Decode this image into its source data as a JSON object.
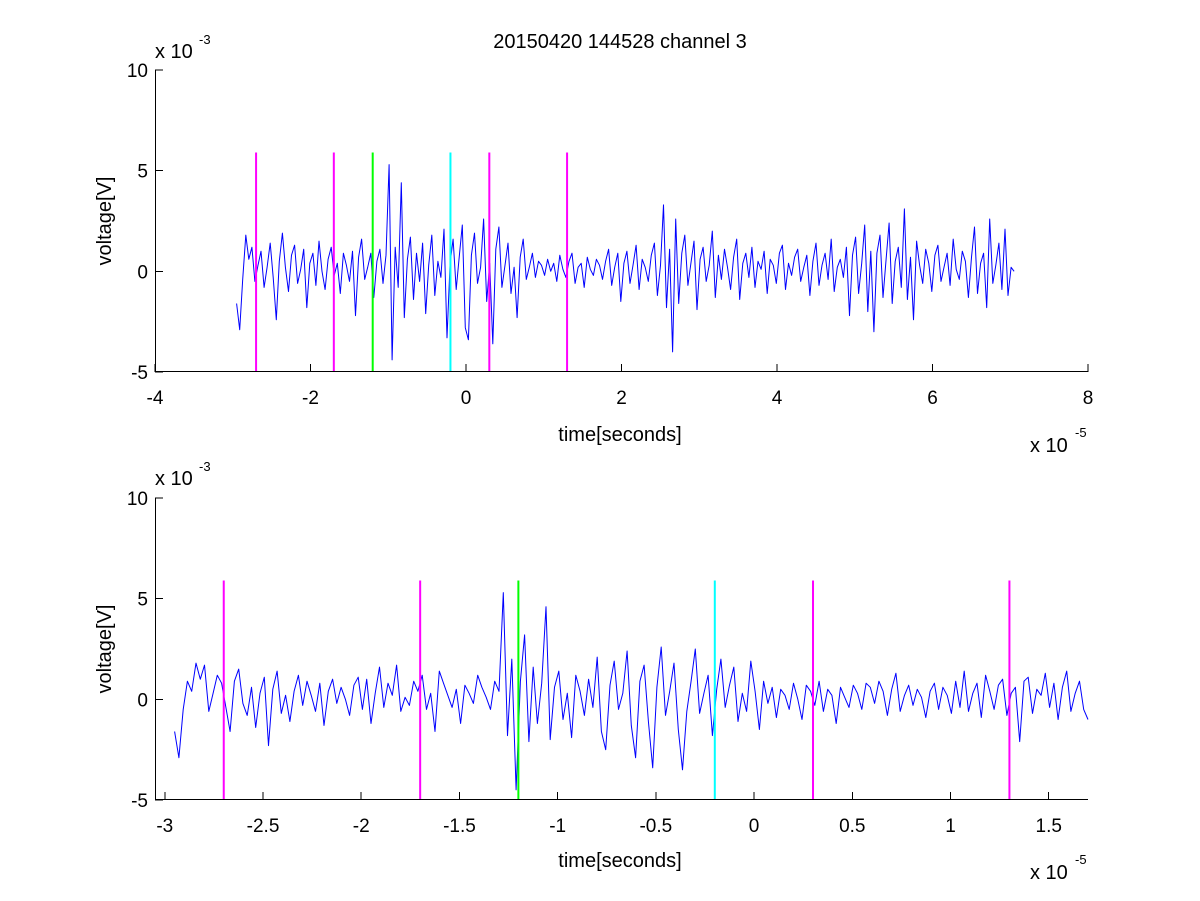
{
  "chart_data": [
    {
      "type": "line",
      "title": "20150420 144528 channel 3",
      "xlabel": "time[seconds]",
      "ylabel": "voltage[V]",
      "x_exponent": {
        "base": "x 10",
        "power": "-5"
      },
      "y_exponent": {
        "base": "x 10",
        "power": "-3"
      },
      "xlim": [
        -4,
        8
      ],
      "ylim": [
        -5,
        10
      ],
      "x_ticks": [
        -4,
        -2,
        0,
        2,
        4,
        6,
        8
      ],
      "x_tick_labels": [
        "-4",
        "-2",
        "0",
        "2",
        "4",
        "6",
        "8"
      ],
      "y_ticks": [
        -5,
        0,
        5,
        10
      ],
      "y_tick_labels": [
        "-5",
        "0",
        "5",
        "10"
      ],
      "grid": false,
      "series": [
        {
          "color": "#0000ff",
          "x_start": -2.95,
          "x_end": 7.05,
          "values": [
            -1.6,
            -2.9,
            -0.4,
            1.8,
            0.6,
            1.2,
            -0.5,
            0.3,
            1.0,
            -0.8,
            0.2,
            1.4,
            -0.3,
            -2.4,
            0.5,
            1.9,
            0.2,
            -1.0,
            0.8,
            1.3,
            -0.6,
            0.1,
            1.1,
            -1.8,
            0.4,
            0.9,
            -0.7,
            1.5,
            0.0,
            -0.9,
            0.6,
            1.2,
            -0.2,
            0.4,
            -1.1,
            0.9,
            0.3,
            -0.5,
            1.0,
            -2.2,
            0.7,
            1.6,
            -0.4,
            0.2,
            0.9,
            -1.3,
            0.5,
            1.1,
            -0.6,
            0.8,
            5.3,
            -4.4,
            1.2,
            -0.8,
            4.4,
            -2.3,
            0.6,
            1.7,
            -1.4,
            0.9,
            -0.5,
            1.4,
            -2.1,
            0.3,
            1.8,
            -1.2,
            0.5,
            -0.3,
            2.1,
            -3.3,
            0.4,
            1.6,
            -0.9,
            0.7,
            2.3,
            -2.8,
            -3.4,
            0.8,
            1.9,
            -0.6,
            0.2,
            2.6,
            -1.5,
            0.4,
            -3.6,
            1.1,
            2.2,
            -0.8,
            0.3,
            1.4,
            -1.1,
            0.2,
            -2.3,
            0.7,
            1.6,
            -0.4,
            0.2,
            0.9,
            -0.3,
            0.5,
            0.3,
            -0.2,
            0.6,
            0.0,
            0.4,
            -0.5,
            0.8,
            0.1,
            -0.3,
            0.5,
            0.9,
            -0.6,
            0.2,
            0.4,
            -0.8,
            0.7,
            0.1,
            -0.2,
            0.6,
            0.3,
            -0.4,
            0.5,
            1.1,
            -0.7,
            0.2,
            0.9,
            -1.5,
            0.4,
            1.0,
            -0.6,
            0.3,
            1.3,
            -0.9,
            0.6,
            0.2,
            -0.5,
            0.8,
            1.4,
            -1.2,
            0.3,
            3.3,
            -1.8,
            1.1,
            -4.0,
            2.6,
            -1.6,
            0.9,
            1.8,
            -0.7,
            0.4,
            1.5,
            -1.9,
            0.6,
            1.2,
            -0.5,
            0.3,
            2.0,
            -1.3,
            0.8,
            -0.4,
            1.1,
            0.2,
            -0.9,
            0.7,
            1.6,
            -1.4,
            0.4,
            0.9,
            -0.3,
            1.2,
            -0.8,
            0.5,
            0.1,
            1.0,
            -1.1,
            0.6,
            0.3,
            -0.6,
            0.9,
            1.3,
            -0.9,
            0.4,
            -0.2,
            0.7,
            1.1,
            -0.5,
            0.2,
            0.8,
            -1.2,
            0.5,
            1.4,
            -0.7,
            0.3,
            0.9,
            -0.4,
            1.6,
            -1.0,
            0.2,
            0.6,
            -0.3,
            1.2,
            -2.2,
            0.8,
            1.7,
            -1.1,
            0.4,
            2.3,
            -2.0,
            1.0,
            -3.0,
            0.9,
            1.8,
            -1.3,
            0.6,
            2.4,
            -1.6,
            0.5,
            1.2,
            -0.8,
            3.1,
            -1.4,
            0.7,
            -2.4,
            1.5,
            0.3,
            -0.6,
            1.1,
            0.4,
            -1.0,
            0.8,
            1.3,
            -0.5,
            0.2,
            0.9,
            -0.7,
            1.6,
            0.1,
            -0.4,
            1.0,
            0.5,
            -1.3,
            0.7,
            2.2,
            -1.1,
            0.4,
            0.9,
            -1.8,
            2.6,
            -0.6,
            0.3,
            1.4,
            -0.9,
            2.1,
            -1.2,
            0.2,
            0.0
          ]
        }
      ],
      "markers": [
        {
          "x": -2.7,
          "color": "#ff00ff",
          "y_top": 5.9
        },
        {
          "x": -1.7,
          "color": "#ff00ff",
          "y_top": 5.9
        },
        {
          "x": -1.2,
          "color": "#00ff00",
          "y_top": 5.9
        },
        {
          "x": -0.2,
          "color": "#00ffff",
          "y_top": 5.9
        },
        {
          "x": 0.3,
          "color": "#ff00ff",
          "y_top": 5.9
        },
        {
          "x": 1.3,
          "color": "#ff00ff",
          "y_top": 5.9
        }
      ]
    },
    {
      "type": "line",
      "title": "",
      "xlabel": "time[seconds]",
      "ylabel": "voltage[V]",
      "x_exponent": {
        "base": "x 10",
        "power": "-5"
      },
      "y_exponent": {
        "base": "x 10",
        "power": "-3"
      },
      "xlim": [
        -3.05,
        1.7
      ],
      "ylim": [
        -5,
        10
      ],
      "x_ticks": [
        -3,
        -2.5,
        -2,
        -1.5,
        -1,
        -0.5,
        0,
        0.5,
        1,
        1.5
      ],
      "x_tick_labels": [
        "-3",
        "-2.5",
        "-2",
        "-1.5",
        "-1",
        "-0.5",
        "0",
        "0.5",
        "1",
        "1.5"
      ],
      "y_ticks": [
        -5,
        0,
        5,
        10
      ],
      "y_tick_labels": [
        "-5",
        "0",
        "5",
        "10"
      ],
      "grid": false,
      "series": [
        {
          "color": "#0000ff",
          "x_start": -2.95,
          "x_end": 1.7,
          "values": [
            -1.6,
            -2.9,
            -0.5,
            0.9,
            0.4,
            1.8,
            1.0,
            1.7,
            -0.6,
            0.3,
            1.2,
            0.8,
            -0.4,
            -1.6,
            0.9,
            1.5,
            -0.2,
            -0.8,
            0.6,
            -1.4,
            0.3,
            1.1,
            -2.3,
            0.5,
            1.4,
            -0.7,
            0.2,
            -1.1,
            0.4,
            1.2,
            -0.3,
            0.9,
            0.2,
            -0.6,
            0.8,
            -1.3,
            0.4,
            1.0,
            -0.2,
            0.6,
            0.0,
            -0.8,
            0.7,
            1.1,
            -0.5,
            1.0,
            -1.2,
            0.3,
            1.6,
            -0.4,
            0.8,
            0.2,
            1.7,
            -0.6,
            0.1,
            -0.3,
            0.9,
            0.4,
            1.2,
            -0.5,
            0.3,
            -1.6,
            1.4,
            0.8,
            0.2,
            -0.4,
            0.5,
            -1.2,
            0.7,
            0.3,
            -0.2,
            1.2,
            0.6,
            0.1,
            -0.5,
            0.9,
            0.4,
            5.3,
            -1.8,
            2.0,
            -4.5,
            0.9,
            3.2,
            -2.1,
            1.6,
            -1.2,
            0.8,
            4.6,
            -2.0,
            0.6,
            1.4,
            -1.0,
            0.3,
            -1.9,
            1.2,
            0.4,
            -0.8,
            1.0,
            -0.4,
            2.1,
            -1.6,
            -2.5,
            0.7,
            1.9,
            -0.5,
            0.3,
            2.4,
            -1.3,
            -2.9,
            0.9,
            1.7,
            -1.1,
            -3.4,
            0.6,
            2.6,
            -0.8,
            0.4,
            1.8,
            -1.5,
            -3.5,
            -0.6,
            0.9,
            2.5,
            -0.7,
            0.3,
            1.2,
            -1.8,
            0.5,
            2.0,
            -0.4,
            0.7,
            1.6,
            -1.1,
            0.3,
            -0.6,
            1.9,
            0.4,
            -1.5,
            0.9,
            -0.2,
            0.6,
            -0.9,
            0.5,
            0.2,
            -0.5,
            0.8,
            0.0,
            -1.0,
            0.7,
            0.4,
            -0.3,
            0.9,
            -0.6,
            0.5,
            0.2,
            -1.2,
            0.6,
            0.1,
            -0.4,
            0.7,
            0.3,
            -0.5,
            0.8,
            0.6,
            -0.2,
            0.9,
            0.4,
            -0.8,
            0.5,
            1.3,
            -0.6,
            0.2,
            0.7,
            -0.3,
            0.5,
            0.1,
            -0.9,
            0.4,
            0.8,
            -0.5,
            0.6,
            0.2,
            -0.7,
            0.9,
            -0.4,
            1.4,
            -0.6,
            0.3,
            0.8,
            -0.9,
            1.2,
            0.4,
            -0.5,
            0.7,
            1.0,
            -0.8,
            0.3,
            0.6,
            -2.1,
            0.9,
            1.1,
            -0.7,
            0.5,
            0.2,
            1.3,
            -0.4,
            0.8,
            -1.0,
            0.6,
            1.4,
            -0.6,
            0.3,
            0.9,
            -0.5,
            -1.0
          ]
        }
      ],
      "markers": [
        {
          "x": -2.7,
          "color": "#ff00ff",
          "y_top": 5.9
        },
        {
          "x": -1.7,
          "color": "#ff00ff",
          "y_top": 5.9
        },
        {
          "x": -1.2,
          "color": "#00ff00",
          "y_top": 5.9
        },
        {
          "x": -0.2,
          "color": "#00ffff",
          "y_top": 5.9
        },
        {
          "x": 0.3,
          "color": "#ff00ff",
          "y_top": 5.9
        },
        {
          "x": 1.3,
          "color": "#ff00ff",
          "y_top": 5.9
        }
      ]
    }
  ]
}
